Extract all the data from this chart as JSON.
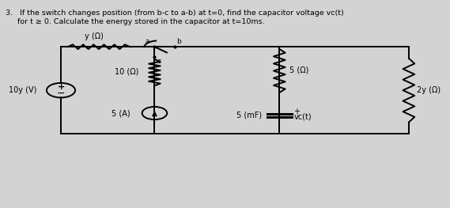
{
  "title_line1": "3.   If the switch changes position (from b-c to a-b) at t=0, find the capacitor voltage vᴄ(t)",
  "title_line2": "     for t ≥ 0. Calculate the energy stored in the capacitor at t=10ms.",
  "bg_color": "#d3d3d3",
  "text_color": "#000000",
  "label_resistor_top": "y (Ω)",
  "label_resistor_mid_left": "10 (Ω)",
  "label_resistor_mid_right": "5 (Ω)",
  "label_resistor_right": "2y (Ω)",
  "label_voltage_source": "10y (V)",
  "label_current_source": "5 (A)",
  "label_capacitor": "5 (mF)",
  "label_vc": "vᴄ(t)",
  "node_a": "a",
  "node_b": "b",
  "node_c": "c"
}
